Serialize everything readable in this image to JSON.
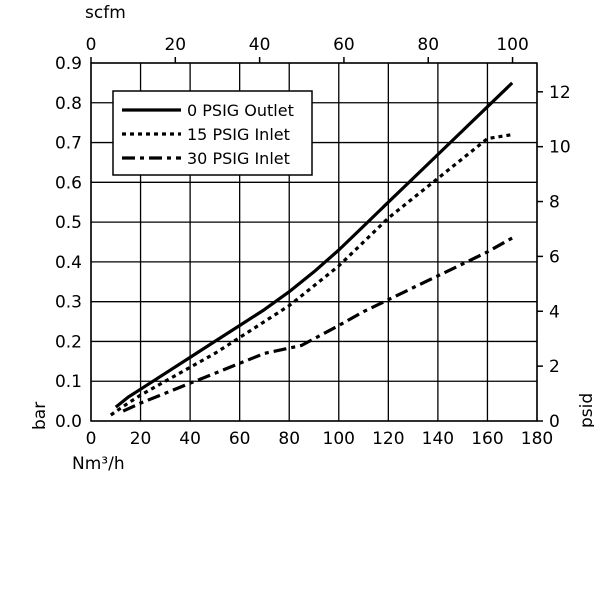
{
  "chart_data": {
    "type": "line",
    "axes": {
      "bottom": {
        "label": "Nm³/h",
        "ticks": [
          0,
          20,
          40,
          60,
          80,
          100,
          120,
          140,
          160,
          180
        ],
        "range": [
          0,
          180
        ]
      },
      "top": {
        "label": "scfm",
        "ticks": [
          0,
          20,
          40,
          60,
          80,
          100
        ],
        "range": [
          0,
          105.8
        ]
      },
      "left": {
        "label": "bar",
        "ticks": [
          "0.0",
          "0.1",
          "0.2",
          "0.3",
          "0.4",
          "0.5",
          "0.6",
          "0.7",
          "0.8",
          "0.9"
        ],
        "range": [
          0,
          0.9
        ]
      },
      "right": {
        "label": "psid",
        "ticks": [
          0,
          2,
          4,
          6,
          8,
          10,
          12
        ],
        "range": [
          0,
          13.05
        ]
      }
    },
    "grid": true,
    "legend_position": "top-left",
    "series": [
      {
        "name": "0 PSIG Outlet",
        "style": "solid",
        "x": [
          10,
          15,
          20,
          30,
          40,
          50,
          60,
          70,
          80,
          90,
          100,
          110,
          120,
          130,
          140,
          150,
          160,
          170
        ],
        "y": [
          0.035,
          0.06,
          0.08,
          0.12,
          0.16,
          0.2,
          0.24,
          0.28,
          0.325,
          0.375,
          0.43,
          0.49,
          0.55,
          0.61,
          0.67,
          0.73,
          0.79,
          0.85
        ]
      },
      {
        "name": "15 PSIG Inlet",
        "style": "dotted",
        "x": [
          8,
          15,
          20,
          30,
          40,
          50,
          60,
          70,
          80,
          90,
          100,
          110,
          120,
          130,
          140,
          150,
          160,
          170
        ],
        "y": [
          0.015,
          0.045,
          0.065,
          0.1,
          0.135,
          0.17,
          0.21,
          0.25,
          0.29,
          0.34,
          0.39,
          0.45,
          0.51,
          0.56,
          0.61,
          0.66,
          0.71,
          0.72
        ]
      },
      {
        "name": "30 PSIG Inlet",
        "style": "dash-dot",
        "x": [
          13,
          20,
          30,
          40,
          50,
          60,
          70,
          85,
          100,
          110,
          120,
          130,
          140,
          150,
          160,
          170
        ],
        "y": [
          0.025,
          0.045,
          0.07,
          0.095,
          0.12,
          0.145,
          0.17,
          0.19,
          0.24,
          0.275,
          0.305,
          0.335,
          0.365,
          0.395,
          0.425,
          0.46
        ]
      }
    ]
  }
}
